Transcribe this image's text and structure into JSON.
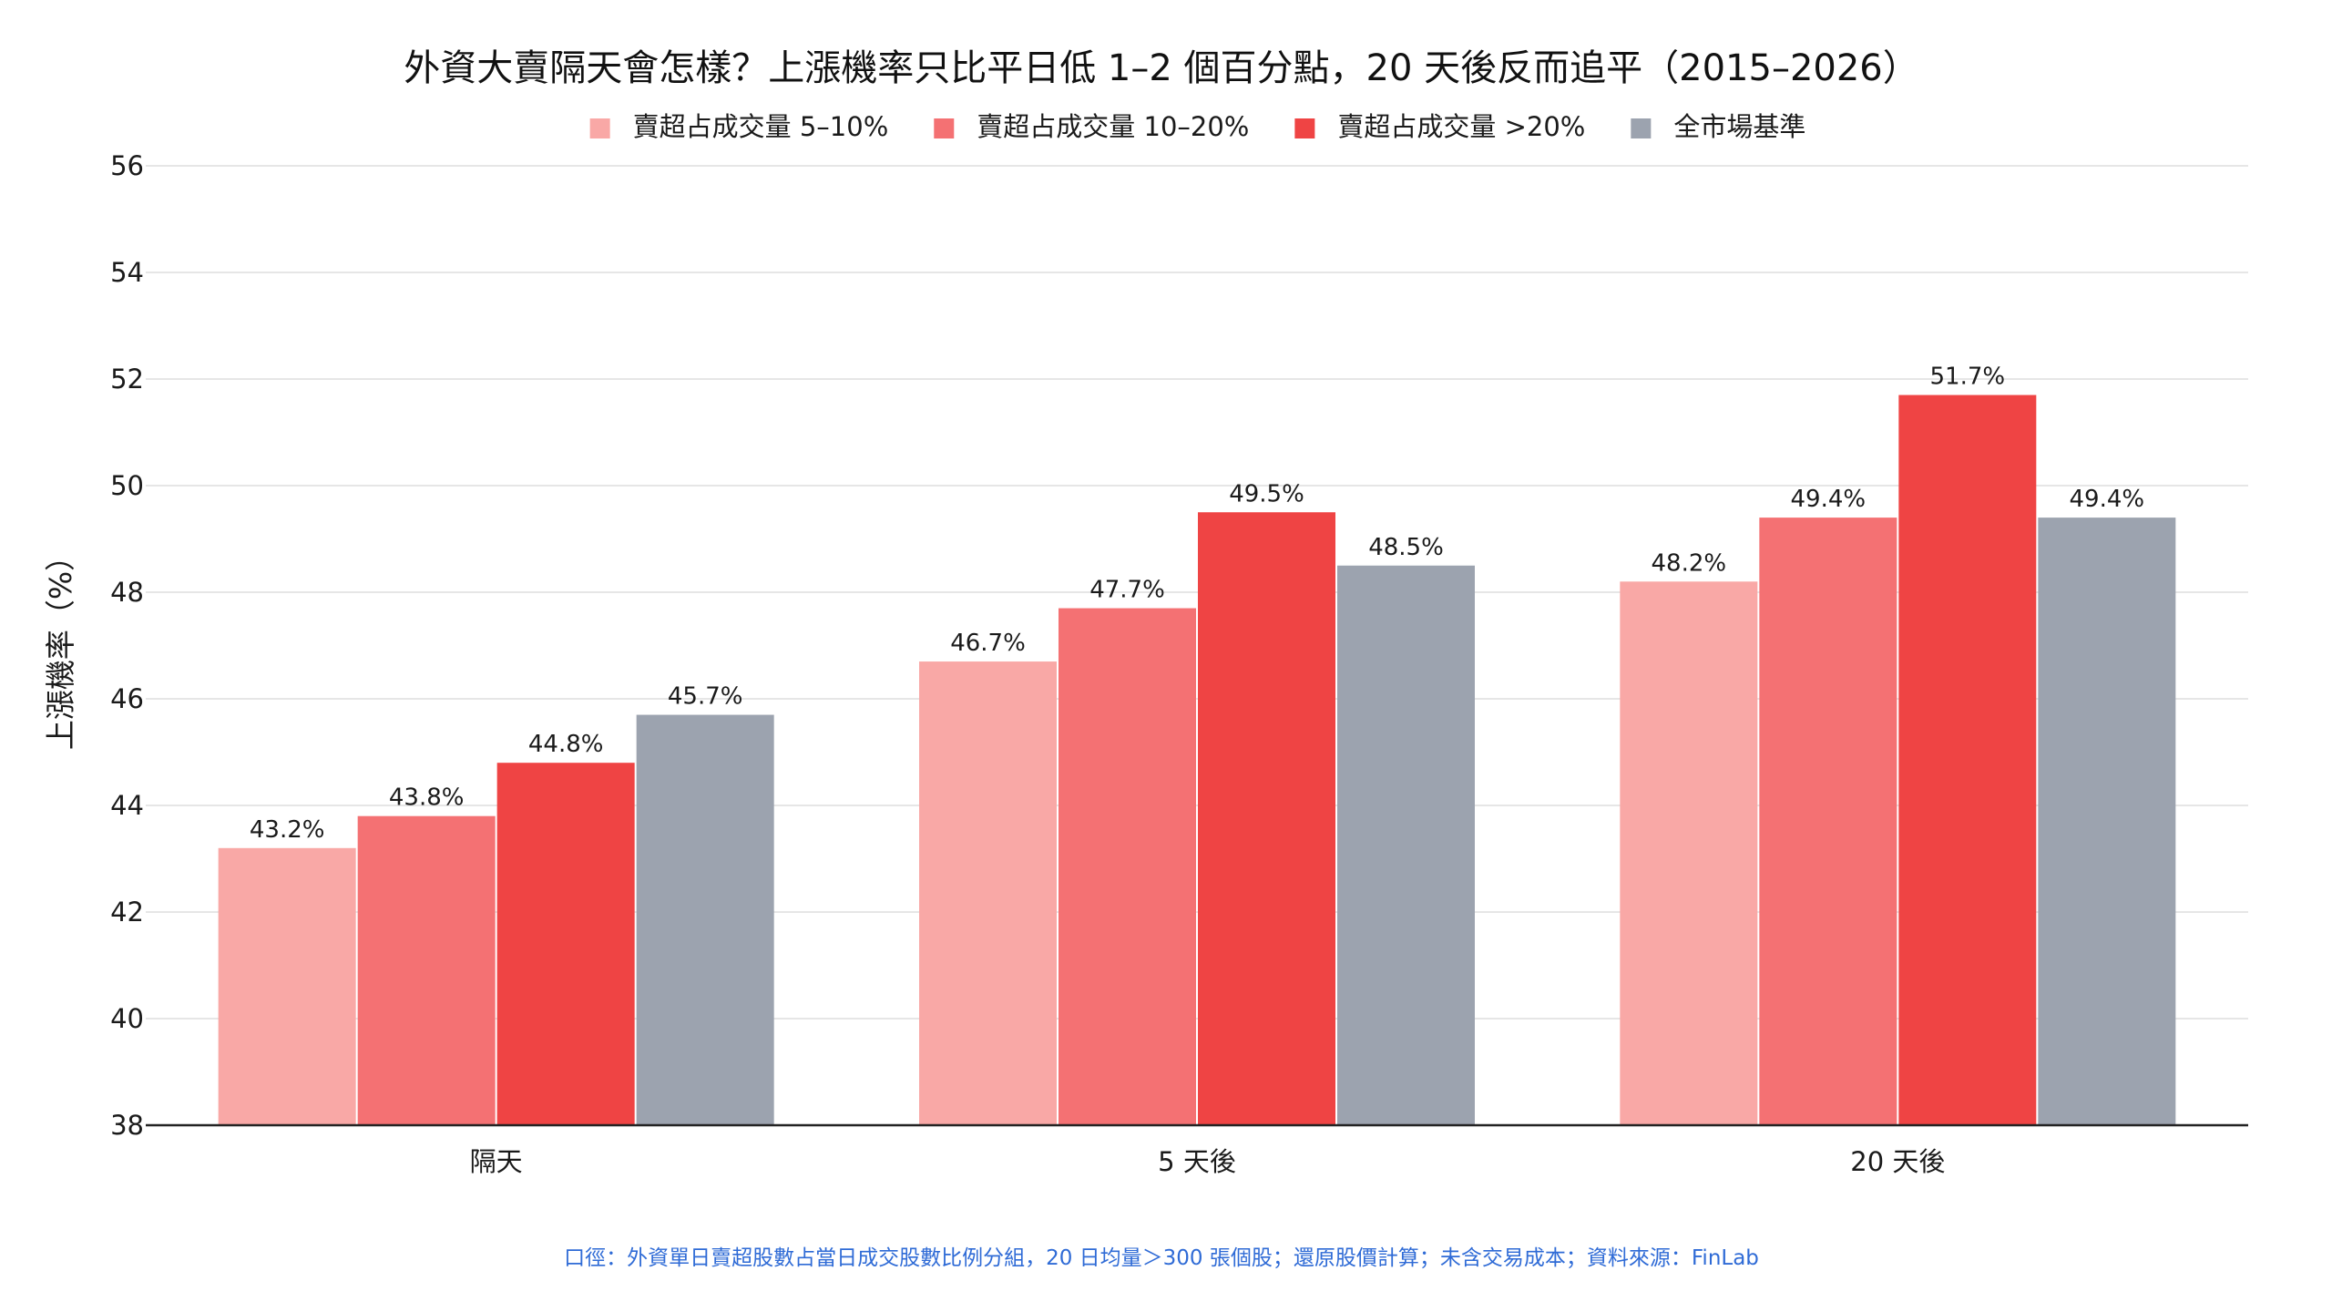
{
  "chart_data": {
    "type": "bar",
    "title": "外資大賣隔天會怎樣？上漲機率只比平日低 1–2 個百分點，20 天後反而追平（2015–2026）",
    "ylabel": "上漲機率（%）",
    "xlabel": "",
    "ylim": [
      38,
      56
    ],
    "yticks": [
      38,
      40,
      42,
      44,
      46,
      48,
      50,
      52,
      54,
      56
    ],
    "grid": true,
    "legend_position": "top-center",
    "categories": [
      "隔天",
      "5 天後",
      "20 天後"
    ],
    "series": [
      {
        "name": "賣超占成交量 5–10%",
        "color": "#f9a8a6",
        "values": [
          43.2,
          46.7,
          48.2
        ],
        "labels": [
          "43.2%",
          "46.7%",
          "48.2%"
        ]
      },
      {
        "name": "賣超占成交量 10–20%",
        "color": "#f47173",
        "values": [
          43.8,
          47.7,
          49.4
        ],
        "labels": [
          "43.8%",
          "47.7%",
          "49.4%"
        ]
      },
      {
        "name": "賣超占成交量 >20%",
        "color": "#ef4444",
        "values": [
          44.8,
          49.5,
          51.7
        ],
        "labels": [
          "44.8%",
          "49.5%",
          "51.7%"
        ]
      },
      {
        "name": "全市場基準",
        "color": "#9ca3af",
        "values": [
          45.7,
          48.5,
          49.4
        ],
        "labels": [
          "45.7%",
          "48.5%",
          "49.4%"
        ]
      }
    ],
    "footnote": "口徑：外資單日賣超股數占當日成交股數比例分組，20 日均量＞300 張個股；還原股價計算；未含交易成本；資料來源：FinLab"
  }
}
